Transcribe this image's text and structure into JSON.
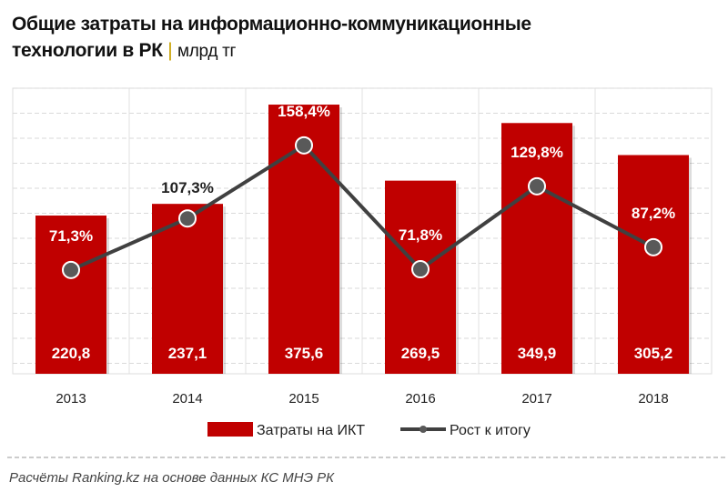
{
  "title": {
    "main": "Общие затраты на информационно-коммуникационные технологии в РК",
    "separator": "|",
    "unit": "млрд тг"
  },
  "source": "Расчёты Ranking.kz на основе данных  КС МНЭ РК",
  "colors": {
    "bar": "#c00000",
    "line": "#404040"
  },
  "chart_data": {
    "type": "bar+line",
    "categories": [
      "2013",
      "2014",
      "2015",
      "2016",
      "2017",
      "2018"
    ],
    "series": [
      {
        "name": "Затраты на ИКТ",
        "type": "bar",
        "values": [
          220.8,
          237.1,
          375.6,
          269.5,
          349.9,
          305.2
        ],
        "labels": [
          "220,8",
          "237,1",
          "375,6",
          "269,5",
          "349,9",
          "305,2"
        ]
      },
      {
        "name": "Рост к итогу",
        "type": "line",
        "axis": "secondary",
        "values": [
          71.3,
          107.3,
          158.4,
          71.8,
          129.8,
          87.2
        ],
        "labels": [
          "71,3%",
          "107,3%",
          "158,4%",
          "71,8%",
          "129,8%",
          "87,2%"
        ]
      }
    ],
    "ylim": [
      0,
      400
    ],
    "y2lim": [
      0,
      200
    ],
    "grid": true,
    "legend": "bottom"
  }
}
